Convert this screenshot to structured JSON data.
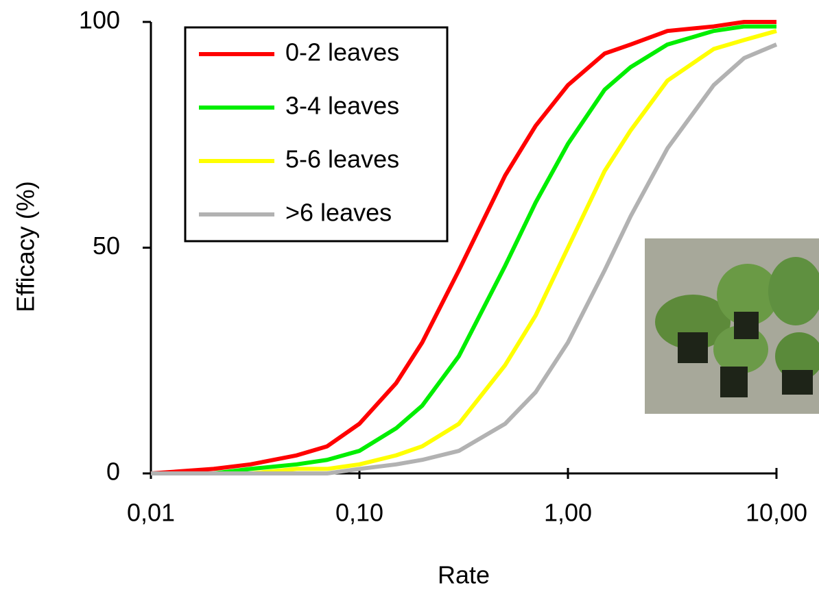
{
  "chart_data": {
    "type": "line",
    "xlabel": "Rate",
    "ylabel": "Efficacy (%)",
    "xscale": "log",
    "x": [
      0.01,
      0.02,
      0.03,
      0.05,
      0.07,
      0.1,
      0.15,
      0.2,
      0.3,
      0.5,
      0.7,
      1,
      1.5,
      2,
      3,
      5,
      7,
      10
    ],
    "series": [
      {
        "name": "0-2 leaves",
        "color": "#ff0000",
        "values": [
          0,
          1,
          2,
          4,
          6,
          11,
          20,
          29,
          45,
          66,
          77,
          86,
          93,
          95,
          98,
          99,
          100,
          100
        ]
      },
      {
        "name": "3-4 leaves",
        "color": "#00ee00",
        "values": [
          0,
          0,
          1,
          2,
          3,
          5,
          10,
          15,
          26,
          46,
          60,
          73,
          85,
          90,
          95,
          98,
          99,
          99
        ]
      },
      {
        "name": "5-6 leaves",
        "color": "#ffff00",
        "values": [
          0,
          0,
          0,
          1,
          1,
          2,
          4,
          6,
          11,
          24,
          35,
          50,
          67,
          76,
          87,
          94,
          96,
          98
        ]
      },
      {
        "name": ">6 leaves",
        "color": "#b2b2b2",
        "values": [
          0,
          0,
          0,
          0,
          0,
          1,
          2,
          3,
          5,
          11,
          18,
          29,
          45,
          57,
          72,
          86,
          92,
          95
        ]
      }
    ],
    "xlim": [
      0.01,
      10
    ],
    "xticks": [
      {
        "value": 0.01,
        "label": "0,01"
      },
      {
        "value": 0.1,
        "label": "0,10"
      },
      {
        "value": 1,
        "label": "1,00"
      },
      {
        "value": 10,
        "label": "10,00"
      }
    ],
    "ylim": [
      0,
      100
    ],
    "yticks": [
      0,
      50,
      100
    ],
    "legend": "upper left"
  }
}
